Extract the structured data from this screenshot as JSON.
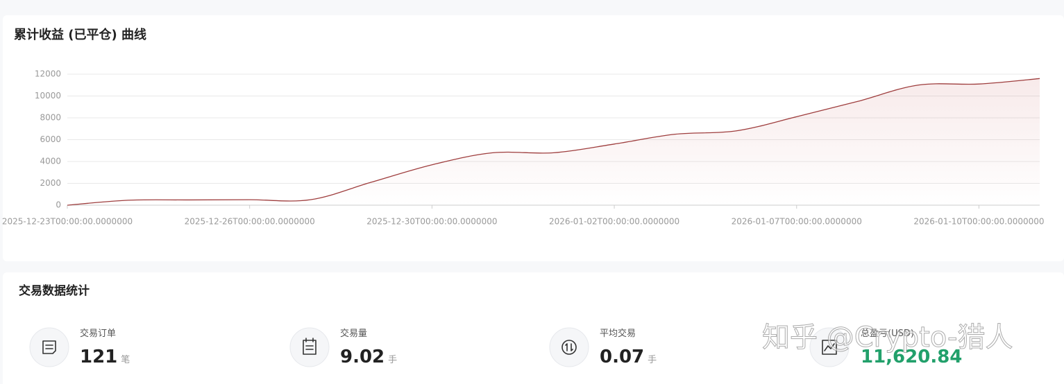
{
  "chart_data": {
    "type": "line",
    "title": "累计收益 (已平仓) 曲线",
    "categories": [
      "2025-12-23T00:00:00.0000000",
      null,
      null,
      "2025-12-26T00:00:00.0000000",
      null,
      null,
      "2025-12-30T00:00:00.0000000",
      null,
      null,
      "2026-01-02T00:00:00.0000000",
      null,
      null,
      "2026-01-07T00:00:00.0000000",
      null,
      null,
      "2026-01-10T00:00:00.0000000",
      null
    ],
    "values": [
      0,
      450,
      480,
      500,
      500,
      2100,
      3700,
      4800,
      4800,
      5600,
      6500,
      6800,
      8100,
      9500,
      11000,
      11100,
      11600
    ],
    "color": "#9e3d3d",
    "ylim": [
      0,
      12000
    ],
    "yticks": [
      0,
      2000,
      4000,
      6000,
      8000,
      10000,
      12000
    ],
    "grid": true
  },
  "stats": {
    "title": "交易数据统计",
    "items": [
      {
        "label": "交易订单",
        "value": "121",
        "unit": "笔"
      },
      {
        "label": "交易量",
        "value": "9.02",
        "unit": "手"
      },
      {
        "label": "平均交易",
        "value": "0.07",
        "unit": "手"
      },
      {
        "label": "总盈亏(USD)",
        "value": "11,620.84"
      }
    ]
  },
  "watermark": "知乎 @Crypto-猎人"
}
